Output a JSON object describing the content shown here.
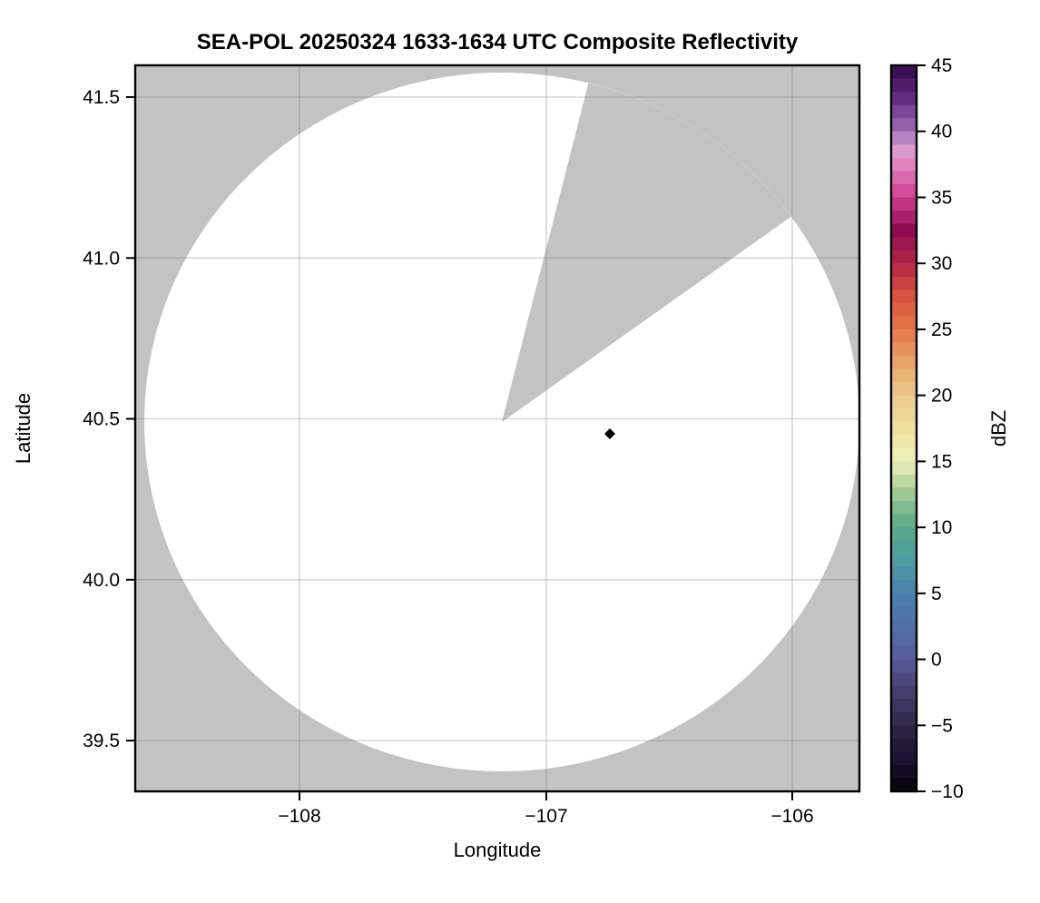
{
  "title": "SEA-POL 20250324 1633-1634 UTC Composite Reflectivity",
  "axes": {
    "x": {
      "label": "Longitude",
      "ticks": [
        {
          "label": "−108",
          "lon": -108
        },
        {
          "label": "−107",
          "lon": -107
        },
        {
          "label": "−106",
          "lon": -106
        }
      ]
    },
    "y": {
      "label": "Latitude",
      "ticks": [
        {
          "label": "41.5",
          "lat": 41.5
        },
        {
          "label": "41.0",
          "lat": 41.0
        },
        {
          "label": "40.5",
          "lat": 40.5
        },
        {
          "label": "40.0",
          "lat": 40.0
        },
        {
          "label": "39.5",
          "lat": 39.5
        }
      ]
    }
  },
  "colorbar": {
    "label": "dBZ",
    "tick_labels": [
      "45",
      "40",
      "35",
      "30",
      "25",
      "20",
      "15",
      "10",
      "5",
      "0",
      "−5",
      "−10"
    ]
  },
  "chart_data": {
    "type": "heatmap",
    "title": "SEA-POL 20250324 1633-1634 UTC Composite Reflectivity",
    "xlabel": "Longitude",
    "ylabel": "Latitude",
    "xlim": [
      -108.67,
      -105.73
    ],
    "ylim": [
      39.34,
      41.6
    ],
    "grid": true,
    "grid_color": "rgba(110,110,110,0.28)",
    "background_color": "#ffffff",
    "colorbar": {
      "label": "dBZ",
      "vmin": -10,
      "vmax": 45,
      "tick_step": 5,
      "bin_size_dbz": 1,
      "orientation": "vertical",
      "stops": [
        {
          "v": -10,
          "c": "#060309"
        },
        {
          "v": -7.5,
          "c": "#1a1430"
        },
        {
          "v": -5,
          "c": "#2e2846"
        },
        {
          "v": -2.5,
          "c": "#453e6d"
        },
        {
          "v": 0,
          "c": "#585b9c"
        },
        {
          "v": 2.5,
          "c": "#5170a8"
        },
        {
          "v": 5,
          "c": "#4b80ae"
        },
        {
          "v": 7.5,
          "c": "#4f9da0"
        },
        {
          "v": 10,
          "c": "#58a888"
        },
        {
          "v": 12.5,
          "c": "#9cc892"
        },
        {
          "v": 15,
          "c": "#eff0bc"
        },
        {
          "v": 17.5,
          "c": "#eedf9e"
        },
        {
          "v": 20,
          "c": "#eaca8e"
        },
        {
          "v": 22.5,
          "c": "#e8a369"
        },
        {
          "v": 25,
          "c": "#e4764a"
        },
        {
          "v": 27.5,
          "c": "#d85440"
        },
        {
          "v": 30,
          "c": "#b42647"
        },
        {
          "v": 32.5,
          "c": "#8d0c51"
        },
        {
          "v": 35,
          "c": "#cf3d92"
        },
        {
          "v": 37.5,
          "c": "#e285bd"
        },
        {
          "v": 38.75,
          "c": "#d9a0d4"
        },
        {
          "v": 40,
          "c": "#9e6eb5"
        },
        {
          "v": 42.5,
          "c": "#622b80"
        },
        {
          "v": 45,
          "c": "#330848"
        }
      ]
    },
    "radar_coverage": {
      "center_lon": -107.18,
      "center_lat": 40.49,
      "range_radius_lat_deg": 1.09,
      "blanked_sector_azimuth_deg": [
        14,
        54
      ],
      "no_data_color": "#c3c3c3",
      "scanned_clear_color": "#ffffff"
    },
    "echoes": [
      {
        "lon": -106.74,
        "lat": 40.45,
        "approx_dbz": -10,
        "marker": "diamond",
        "color": "#000000"
      }
    ]
  }
}
